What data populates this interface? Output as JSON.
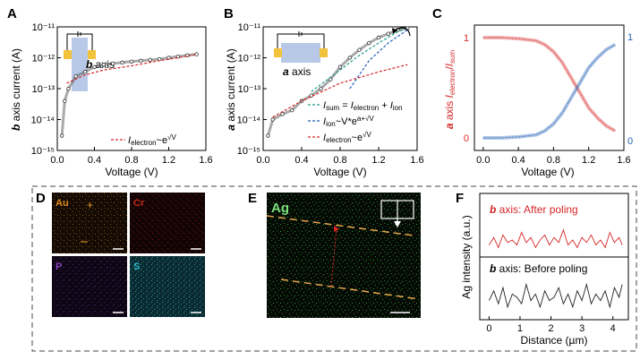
{
  "panels": {
    "A": {
      "letter": "A",
      "inset": "b axis"
    },
    "B": {
      "letter": "B",
      "inset": "a axis"
    },
    "C": {
      "letter": "C"
    },
    "D": {
      "letter": "D",
      "maps": [
        {
          "label": "Au",
          "color": "#e08a1e"
        },
        {
          "label": "Cr",
          "color": "#c0281c"
        },
        {
          "label": "P",
          "color": "#8a3fbf"
        },
        {
          "label": "S",
          "color": "#2fb8c8"
        }
      ]
    },
    "E": {
      "letter": "E",
      "map_label": "Ag",
      "color": "#3cc43c"
    },
    "F": {
      "letter": "F"
    }
  },
  "chart_data": [
    {
      "id": "A",
      "type": "scatter",
      "xlabel": "Voltage (V)",
      "ylabel": "b axis current (A)",
      "xlim": [
        0,
        1.6
      ],
      "xticks": [
        "0.0",
        "0.4",
        "0.8",
        "1.2",
        "1.6"
      ],
      "yscale": "log",
      "ylim_exp": [
        -15,
        -11
      ],
      "yticks": [
        "10⁻¹⁵",
        "10⁻¹⁴",
        "10⁻¹³",
        "10⁻¹²",
        "10⁻¹¹"
      ],
      "legend": [
        "I_electron ~ e^√V"
      ],
      "legend_pos": "bottom-right",
      "series": [
        {
          "x": [
            0.05,
            0.08,
            0.12,
            0.2,
            0.3,
            0.4,
            0.5,
            0.6,
            0.7,
            0.8,
            0.9,
            1.0,
            1.1,
            1.2,
            1.3,
            1.4,
            1.5
          ],
          "y": [
            3e-15,
            4e-14,
            1e-13,
            2.5e-13,
            3.5e-13,
            5e-13,
            6e-13,
            6.5e-13,
            7e-13,
            7.5e-13,
            8e-13,
            8.5e-13,
            9e-13,
            1e-12,
            1.1e-12,
            1.2e-12,
            1.3e-12
          ]
        },
        {
          "name": "I_electron ~ e^√V",
          "style": "dashed",
          "x": [
            0.1,
            0.3,
            0.5,
            0.8,
            1.1,
            1.3,
            1.5
          ],
          "y": [
            1.5e-13,
            2.8e-13,
            4e-13,
            5.5e-13,
            8e-13,
            1e-12,
            1.3e-12
          ]
        }
      ]
    },
    {
      "id": "B",
      "type": "scatter",
      "xlabel": "Voltage (V)",
      "ylabel": "a axis current (A)",
      "xlim": [
        0,
        1.6
      ],
      "xticks": [
        "0.0",
        "0.4",
        "0.8",
        "1.2",
        "1.6"
      ],
      "yscale": "log",
      "ylim_exp": [
        -15,
        -11
      ],
      "yticks": [
        "10⁻¹⁵",
        "10⁻¹⁴",
        "10⁻¹³",
        "10⁻¹²",
        "10⁻¹¹"
      ],
      "legend": [
        "I_sum = I_electron + I_ion",
        "I_ion ~ V*e^(a+√V)",
        "I_electron ~ e^√V"
      ],
      "legend_pos": "bottom-right",
      "series": [
        {
          "x": [
            0.05,
            0.1,
            0.2,
            0.3,
            0.4,
            0.5,
            0.6,
            0.7,
            0.8,
            0.9,
            1.0,
            1.1,
            1.2,
            1.3,
            1.4,
            1.5
          ],
          "y": [
            3e-15,
            1e-14,
            1.5e-14,
            2e-14,
            4e-14,
            6e-14,
            1e-13,
            2e-13,
            5e-13,
            1e-12,
            1.8e-12,
            3e-12,
            4.5e-12,
            6e-12,
            8e-12,
            9e-12
          ]
        },
        {
          "name": "I_sum = I_electron + I_ion",
          "style": "dashed",
          "x": [
            0.5,
            0.8,
            1.0,
            1.2,
            1.4,
            1.5
          ],
          "y": [
            8e-14,
            4e-13,
            1.2e-12,
            3e-12,
            7e-12,
            9e-12
          ]
        },
        {
          "name": "I_ion ~ V*e^(a+√V)",
          "style": "dashed",
          "x": [
            0.9,
            1.1,
            1.3,
            1.5
          ],
          "y": [
            1e-13,
            8e-13,
            3e-12,
            8e-12
          ]
        },
        {
          "name": "I_electron ~ e^√V",
          "style": "dashed",
          "x": [
            0.1,
            0.4,
            0.8,
            1.2,
            1.5
          ],
          "y": [
            1.2e-14,
            4e-14,
            1.5e-13,
            3.5e-13,
            6e-13
          ]
        }
      ]
    },
    {
      "id": "C",
      "type": "line",
      "xlabel": "Voltage (V)",
      "ylabel": "a axis I_electron/I_sum",
      "xlim": [
        -0.1,
        1.6
      ],
      "xticks": [
        "0.0",
        "0.4",
        "0.8",
        "1.2",
        "1.6"
      ],
      "ylim": [
        0,
        1
      ],
      "yticks": [
        "0",
        "1"
      ],
      "series": [
        {
          "x": [
            0,
            0.2,
            0.4,
            0.6,
            0.7,
            0.8,
            0.9,
            1.0,
            1.1,
            1.2,
            1.3,
            1.4,
            1.5
          ],
          "y": [
            1.0,
            1.0,
            0.99,
            0.97,
            0.93,
            0.86,
            0.75,
            0.6,
            0.45,
            0.3,
            0.2,
            0.12,
            0.07
          ]
        },
        {
          "x": [
            0,
            0.2,
            0.4,
            0.6,
            0.7,
            0.8,
            0.9,
            1.0,
            1.1,
            1.2,
            1.3,
            1.4,
            1.5
          ],
          "y": [
            0.0,
            0.0,
            0.01,
            0.03,
            0.07,
            0.14,
            0.25,
            0.4,
            0.55,
            0.7,
            0.8,
            0.88,
            0.93
          ]
        }
      ]
    },
    {
      "id": "F",
      "type": "line",
      "xlabel": "Distance (µm)",
      "ylabel": "Ag intensity (a.u.)",
      "xlim": [
        -0.3,
        4.5
      ],
      "xticks": [
        "0",
        "1",
        "2",
        "3",
        "4"
      ],
      "annotations": [
        "b axis: After poling",
        "b axis: Before poling"
      ],
      "series": [
        {
          "name": "b axis: After poling",
          "x": [
            0,
            0.15,
            0.3,
            0.45,
            0.6,
            0.75,
            0.9,
            1.05,
            1.2,
            1.35,
            1.5,
            1.65,
            1.8,
            1.95,
            2.1,
            2.25,
            2.4,
            2.55,
            2.7,
            2.85,
            3.0,
            3.15,
            3.3,
            3.45,
            3.6,
            3.75,
            3.9,
            4.05,
            4.2,
            4.3
          ],
          "y": [
            0.3,
            0.6,
            0.2,
            0.7,
            0.4,
            0.5,
            0.3,
            0.8,
            0.4,
            0.6,
            0.2,
            0.5,
            0.7,
            0.3,
            0.6,
            0.4,
            0.9,
            0.3,
            0.5,
            0.2,
            0.6,
            0.4,
            0.7,
            0.3,
            0.5,
            0.2,
            0.8,
            0.4,
            0.6,
            0.3
          ]
        },
        {
          "name": "b axis: Before poling",
          "x": [
            0,
            0.15,
            0.3,
            0.45,
            0.6,
            0.75,
            0.9,
            1.05,
            1.2,
            1.35,
            1.5,
            1.65,
            1.8,
            1.95,
            2.1,
            2.25,
            2.4,
            2.55,
            2.7,
            2.85,
            3.0,
            3.15,
            3.3,
            3.45,
            3.6,
            3.75,
            3.9,
            4.05,
            4.2,
            4.3
          ],
          "y": [
            0.4,
            0.7,
            0.3,
            0.8,
            0.2,
            0.6,
            0.5,
            0.3,
            0.9,
            0.4,
            0.6,
            0.2,
            0.7,
            0.4,
            0.5,
            0.8,
            0.3,
            0.6,
            0.2,
            0.7,
            0.4,
            0.9,
            0.3,
            0.6,
            0.4,
            0.7,
            0.2,
            0.8,
            0.5,
            0.9
          ]
        }
      ]
    }
  ]
}
